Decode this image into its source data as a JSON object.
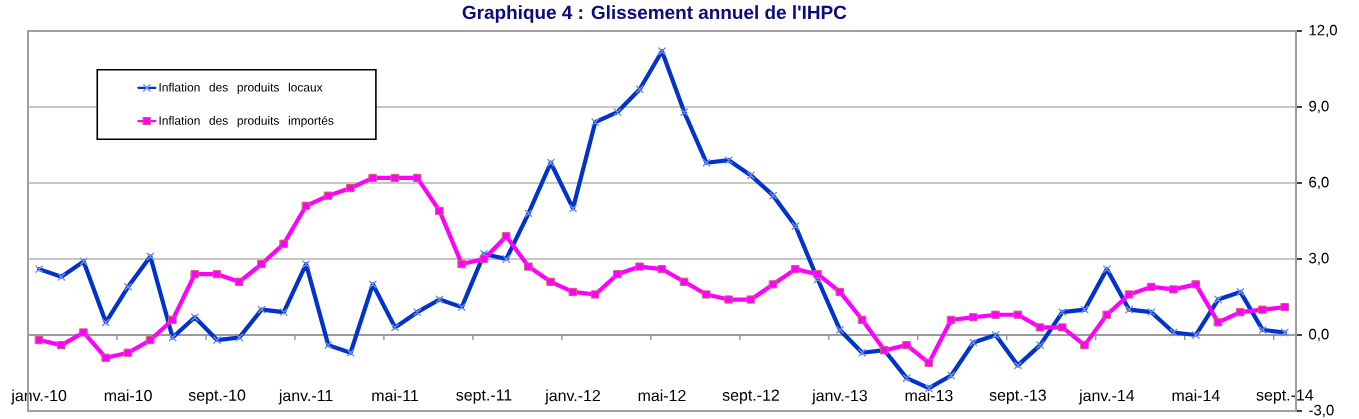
{
  "chart_data": {
    "type": "line",
    "title": "Graphique 4 : Glissement annuel de l'IHPC",
    "categories": [
      "janv.-10",
      null,
      null,
      null,
      "mai-10",
      null,
      null,
      null,
      "sept.-10",
      null,
      null,
      null,
      "janv.-11",
      null,
      null,
      null,
      "mai-11",
      null,
      null,
      null,
      "sept.-11",
      null,
      null,
      null,
      "janv.-12",
      null,
      null,
      null,
      "mai-12",
      null,
      null,
      null,
      "sept.-12",
      null,
      null,
      null,
      "janv.-13",
      null,
      null,
      null,
      "mai-13",
      null,
      null,
      null,
      "sept.-13",
      null,
      null,
      null,
      "janv.-14",
      null,
      null,
      null,
      "mai-14",
      null,
      null,
      null,
      "sept.-14"
    ],
    "series": [
      {
        "name": "Inflation des produits locaux",
        "color": "#0033cc",
        "marker": "cross",
        "values": [
          2.6,
          2.3,
          2.9,
          0.5,
          1.9,
          3.1,
          -0.1,
          0.7,
          -0.2,
          -0.1,
          1.0,
          0.9,
          2.8,
          -0.4,
          -0.7,
          2.0,
          0.3,
          0.9,
          1.4,
          1.1,
          3.2,
          3.0,
          4.8,
          6.8,
          5.0,
          8.4,
          8.8,
          9.7,
          11.2,
          8.8,
          6.8,
          6.9,
          6.3,
          5.5,
          4.3,
          2.2,
          0.2,
          -0.7,
          -0.6,
          -1.7,
          -2.1,
          -1.6,
          -0.3,
          0.0,
          -1.2,
          -0.4,
          0.9,
          1.0,
          2.6,
          1.0,
          0.9,
          0.1,
          0.0,
          1.4,
          1.7,
          0.2,
          0.1
        ]
      },
      {
        "name": "Inflation des produits importés",
        "color": "#ff00ff",
        "marker": "square",
        "values": [
          -0.2,
          -0.4,
          0.1,
          -0.9,
          -0.7,
          -0.2,
          0.6,
          2.4,
          2.4,
          2.1,
          2.8,
          3.6,
          5.1,
          5.5,
          5.8,
          6.2,
          6.2,
          6.2,
          4.9,
          2.8,
          3.0,
          3.9,
          2.7,
          2.1,
          1.7,
          1.6,
          2.4,
          2.7,
          2.6,
          2.1,
          1.6,
          1.4,
          1.4,
          2.0,
          2.6,
          2.4,
          1.7,
          0.6,
          -0.6,
          -0.4,
          -1.1,
          0.6,
          0.7,
          0.8,
          0.8,
          0.3,
          0.3,
          -0.4,
          0.8,
          1.6,
          1.9,
          1.8,
          2.0,
          0.5,
          0.9,
          1.0,
          1.1
        ]
      }
    ],
    "ylim": [
      -3,
      12
    ],
    "yticks": [
      {
        "value": -3,
        "label": "-3,0"
      },
      {
        "value": 0,
        "label": "0,0"
      },
      {
        "value": 3,
        "label": "3,0"
      },
      {
        "value": 6,
        "label": "6,0"
      },
      {
        "value": 9,
        "label": "9,0"
      },
      {
        "value": 12,
        "label": "12,0"
      }
    ],
    "grid": "y",
    "legend": "top left"
  }
}
